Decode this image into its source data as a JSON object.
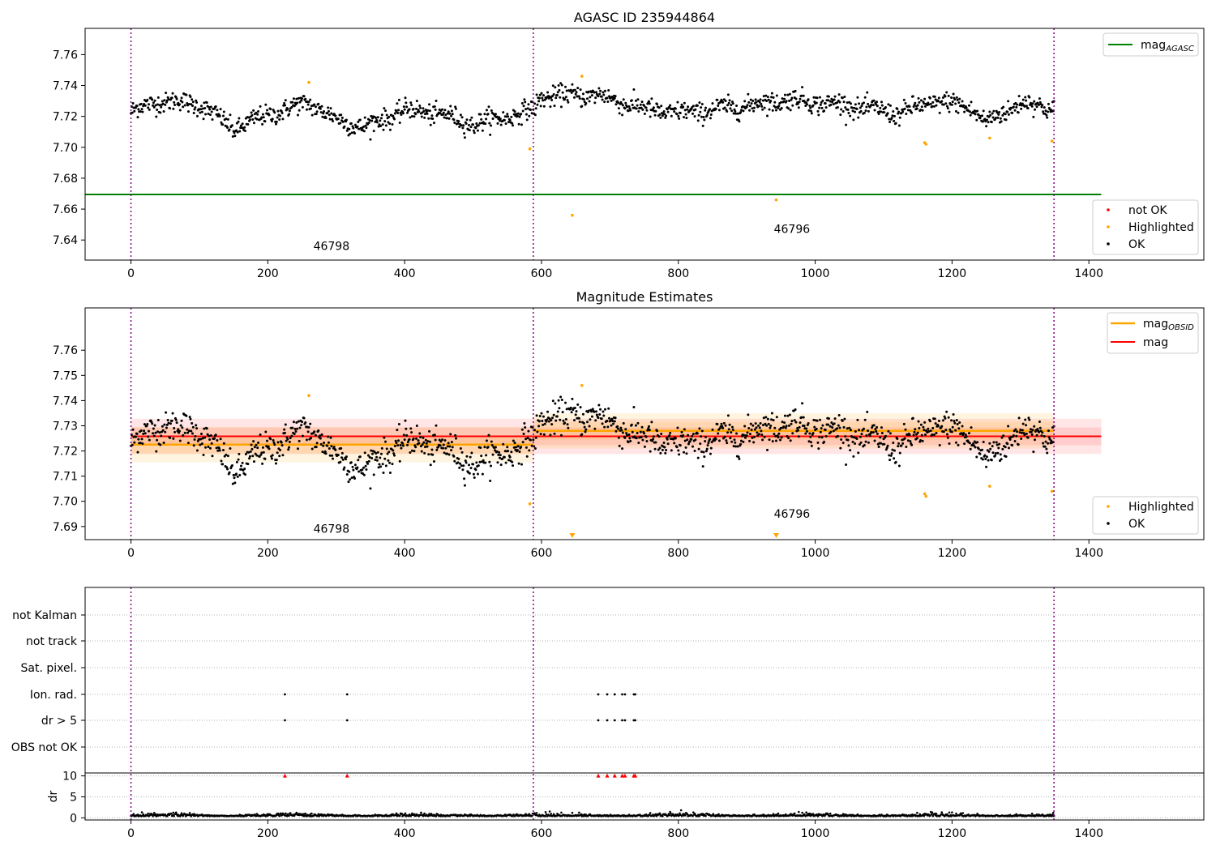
{
  "chart_data": [
    {
      "type": "scatter",
      "title": "AGASC ID 235944864",
      "xlim": [
        -67,
        1568
      ],
      "ylim": [
        7.627,
        7.777
      ],
      "xticks": [
        0,
        200,
        400,
        600,
        800,
        1000,
        1200,
        1400
      ],
      "yticks": [
        7.64,
        7.66,
        7.68,
        7.7,
        7.72,
        7.74,
        7.76
      ],
      "obsid_boundaries": [
        0,
        588,
        1349
      ],
      "obsid_labels": [
        {
          "text": "46798",
          "x": 293,
          "y": 7.6335
        },
        {
          "text": "46796",
          "x": 966,
          "y": 7.6445
        }
      ],
      "lines": [
        {
          "name": "mag_AGASC",
          "color": "#008000",
          "y": 7.6695,
          "x": [
            0,
            1418
          ]
        }
      ],
      "legend_lines": [
        {
          "label": "mag",
          "sub": "AGASC",
          "color": "#008000"
        }
      ],
      "legend_markers": [
        {
          "label": "not OK",
          "color": "#ff0000"
        },
        {
          "label": "Highlighted",
          "color": "#ffa500"
        },
        {
          "label": "OK",
          "color": "#000000"
        }
      ],
      "legend_lines_position": "upper right",
      "legend_markers_position": "lower right",
      "highlighted_points": [
        {
          "x": 260,
          "y": 7.742
        },
        {
          "x": 583,
          "y": 7.699
        },
        {
          "x": 645,
          "y": 7.656
        },
        {
          "x": 659,
          "y": 7.746
        },
        {
          "x": 943,
          "y": 7.666
        },
        {
          "x": 1160,
          "y": 7.703
        },
        {
          "x": 1162,
          "y": 7.702
        },
        {
          "x": 1255,
          "y": 7.706
        },
        {
          "x": 1346,
          "y": 7.704
        }
      ],
      "ok_series": {
        "x_range": [
          0,
          1349
        ],
        "profile": [
          [
            0,
            7.723
          ],
          [
            40,
            7.73
          ],
          [
            100,
            7.728
          ],
          [
            150,
            7.712
          ],
          [
            200,
            7.721
          ],
          [
            260,
            7.729
          ],
          [
            300,
            7.718
          ],
          [
            340,
            7.713
          ],
          [
            400,
            7.724
          ],
          [
            450,
            7.722
          ],
          [
            500,
            7.715
          ],
          [
            540,
            7.719
          ],
          [
            588,
            7.724
          ],
          [
            600,
            7.733
          ],
          [
            680,
            7.734
          ],
          [
            750,
            7.725
          ],
          [
            800,
            7.722
          ],
          [
            900,
            7.727
          ],
          [
            960,
            7.731
          ],
          [
            1050,
            7.727
          ],
          [
            1120,
            7.722
          ],
          [
            1180,
            7.73
          ],
          [
            1230,
            7.725
          ],
          [
            1250,
            7.716
          ],
          [
            1300,
            7.729
          ],
          [
            1349,
            7.725
          ]
        ],
        "scatter": 0.005
      }
    },
    {
      "type": "scatter",
      "title": "Magnitude Estimates",
      "xlim": [
        -67,
        1568
      ],
      "ylim": [
        7.6848,
        7.7768
      ],
      "xticks": [
        0,
        200,
        400,
        600,
        800,
        1000,
        1200,
        1400
      ],
      "yticks": [
        7.69,
        7.7,
        7.71,
        7.72,
        7.73,
        7.74,
        7.75,
        7.76
      ],
      "obsid_boundaries": [
        0,
        588,
        1349
      ],
      "obsid_labels": [
        {
          "text": "46798",
          "x": 293,
          "y": 7.6875
        },
        {
          "text": "46796",
          "x": 966,
          "y": 7.6935
        }
      ],
      "lines": [
        {
          "name": "mag",
          "color": "#ff0000",
          "y": 7.7258,
          "x": [
            0,
            1418
          ],
          "band_outer": [
            7.7188,
            7.7328
          ],
          "band_inner": [
            7.7223,
            7.7293
          ]
        },
        {
          "name": "mag_OBSID 46798",
          "color": "#ffa500",
          "y": 7.7225,
          "x": [
            0,
            588
          ],
          "band_outer": [
            7.7155,
            7.7295
          ],
          "band_inner": [
            7.719,
            7.726
          ]
        },
        {
          "name": "mag_OBSID 46796",
          "color": "#ffa500",
          "y": 7.728,
          "x": [
            588,
            1349
          ],
          "band_outer": [
            7.721,
            7.735
          ],
          "band_inner": [
            7.7245,
            7.7315
          ]
        }
      ],
      "legend_lines": [
        {
          "label": "mag",
          "sub": "OBSID",
          "color": "#ffa500"
        },
        {
          "label": "mag",
          "sub": "",
          "color": "#ff0000"
        }
      ],
      "legend_markers": [
        {
          "label": "Highlighted",
          "color": "#ffa500"
        },
        {
          "label": "OK",
          "color": "#000000"
        }
      ],
      "legend_lines_position": "upper right",
      "legend_markers_position": "lower right",
      "highlighted_points": [
        {
          "x": 260,
          "y": 7.742
        },
        {
          "x": 583,
          "y": 7.699
        },
        {
          "x": 659,
          "y": 7.746
        },
        {
          "x": 1160,
          "y": 7.703
        },
        {
          "x": 1162,
          "y": 7.702
        },
        {
          "x": 1255,
          "y": 7.706
        },
        {
          "x": 1346,
          "y": 7.704
        }
      ],
      "below_range_markers": [
        {
          "x": 645
        },
        {
          "x": 943
        }
      ]
    },
    {
      "type": "scatter",
      "ylabel": "dr",
      "xlim": [
        -67,
        1568
      ],
      "xticks": [
        0,
        200,
        400,
        600,
        800,
        1000,
        1200,
        1400
      ],
      "obsid_boundaries": [
        0,
        588,
        1349
      ],
      "flag_rows": [
        "not Kalman",
        "not track",
        "Sat. pixel.",
        "Ion. rad.",
        "dr > 5",
        "OBS not OK"
      ],
      "flag_points": [
        {
          "row": "Ion. rad.",
          "x": [
            225,
            316,
            683,
            696,
            707,
            718,
            722,
            735,
            737
          ]
        },
        {
          "row": "dr > 5",
          "x": [
            225,
            316,
            683,
            696,
            707,
            718,
            722,
            735,
            737
          ]
        }
      ],
      "dr_ylim": [
        -0.5,
        10.5
      ],
      "dr_yticks": [
        0,
        5,
        10
      ],
      "dr_clipped_markers": {
        "y": 10,
        "color": "#ff0000",
        "x": [
          225,
          316,
          683,
          696,
          707,
          718,
          722,
          735,
          737
        ]
      },
      "dr_series": {
        "x_range": [
          0,
          1349
        ],
        "typical": 0.4,
        "spike": {
          "x": 645,
          "y": 1.2
        }
      }
    }
  ]
}
